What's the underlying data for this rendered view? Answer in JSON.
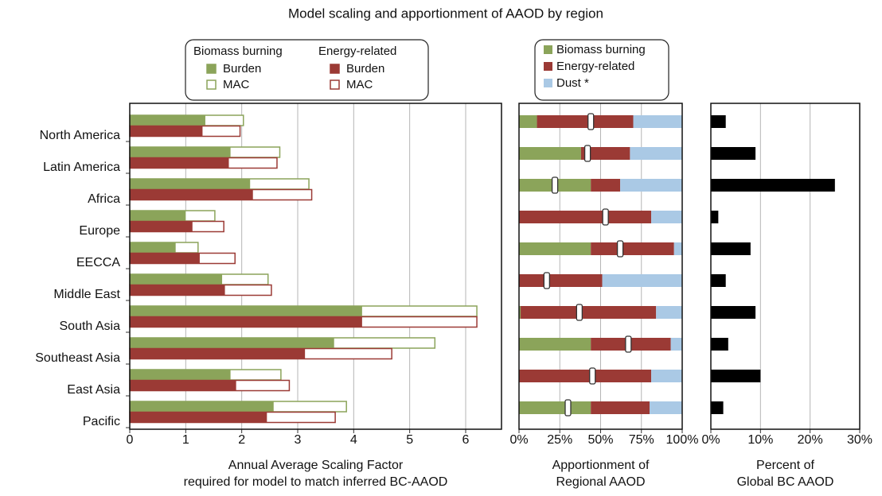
{
  "chart_data": [
    {
      "type": "grouped-bar",
      "orientation": "horizontal",
      "title": "Model scaling and apportionment of AAOD by region",
      "categories": [
        "North America",
        "Latin America",
        "Africa",
        "Europe",
        "EECCA",
        "Middle East",
        "South Asia",
        "Southeast Asia",
        "East Asia",
        "Pacific"
      ],
      "groups": [
        {
          "name": "Biomass burning",
          "color": "#8ba45a",
          "series": [
            {
              "name": "Burden",
              "style": "filled",
              "values": [
                1.35,
                1.8,
                2.15,
                1.0,
                0.82,
                1.65,
                4.15,
                3.65,
                1.8,
                2.57
              ]
            },
            {
              "name": "MAC",
              "style": "outline",
              "values": [
                2.03,
                2.68,
                3.2,
                1.52,
                1.22,
                2.47,
                6.2,
                5.45,
                2.7,
                3.87
              ]
            }
          ]
        },
        {
          "name": "Energy-related",
          "color": "#9b3a35",
          "series": [
            {
              "name": "Burden",
              "style": "filled",
              "values": [
                1.3,
                1.77,
                2.2,
                1.12,
                1.25,
                1.7,
                4.15,
                3.13,
                1.9,
                2.45
              ]
            },
            {
              "name": "MAC",
              "style": "outline",
              "values": [
                1.97,
                2.63,
                3.25,
                1.68,
                1.88,
                2.53,
                6.2,
                4.68,
                2.85,
                3.67
              ]
            }
          ]
        }
      ],
      "xlim": [
        0,
        6.64
      ],
      "xticks": [
        0,
        1,
        2,
        3,
        4,
        5,
        6
      ],
      "grid": true,
      "axis_label": [
        "Annual Average Scaling Factor",
        "required for model to match inferred BC-AAOD"
      ]
    },
    {
      "type": "stacked-bar",
      "orientation": "horizontal",
      "series": [
        {
          "name": "Biomass burning",
          "color": "#8ba45a",
          "values": [
            11,
            38,
            44,
            0,
            44,
            0,
            1,
            44,
            0,
            44
          ]
        },
        {
          "name": "Energy-related",
          "color": "#9b3a35",
          "values": [
            59,
            30,
            18,
            81,
            51,
            51,
            83,
            49,
            81,
            36
          ]
        },
        {
          "name": "Dust *",
          "color": "#aac9e5",
          "values": [
            30,
            32,
            38,
            19,
            5,
            49,
            16,
            7,
            19,
            20
          ]
        }
      ],
      "markers": [
        44,
        42,
        22,
        53,
        62,
        17,
        37,
        67,
        45,
        30
      ],
      "xlim": [
        0,
        100
      ],
      "xticks": [
        {
          "value": 0,
          "label": "0%"
        },
        {
          "value": 25,
          "label": "25%"
        },
        {
          "value": 50,
          "label": "50%"
        },
        {
          "value": 75,
          "label": "75%"
        },
        {
          "value": 100,
          "label": "100%"
        }
      ],
      "grid": true,
      "axis_label": [
        "Apportionment of",
        "Regional AAOD"
      ]
    },
    {
      "type": "bar",
      "orientation": "horizontal",
      "color": "#000000",
      "values": [
        3,
        9,
        25,
        1.5,
        8,
        3,
        9,
        3.5,
        10,
        2.5
      ],
      "xlim": [
        0,
        30
      ],
      "xticks": [
        {
          "value": 0,
          "label": "0%"
        },
        {
          "value": 10,
          "label": "10%"
        },
        {
          "value": 20,
          "label": "20%"
        },
        {
          "value": 30,
          "label": "30%"
        }
      ],
      "grid": true,
      "axis_label": [
        "Percent of",
        "Global BC AAOD"
      ]
    }
  ]
}
